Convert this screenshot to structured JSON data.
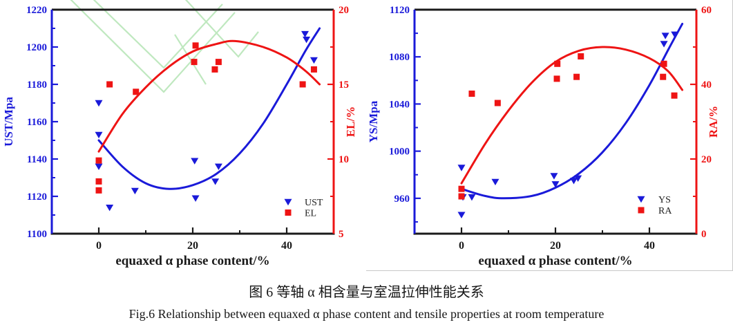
{
  "figure": {
    "caption_zh": "图 6 等轴 α 相含量与室温拉伸性能关系",
    "caption_en": "Fig.6 Relationship between equaxed α phase content and tensile properties at room temperature"
  },
  "colors": {
    "blue": "#1a1ad9",
    "red": "#ee1414",
    "black": "#1a1a1a",
    "watermark_green": "#bfe8bf",
    "panel_border": "#c8c8c8"
  },
  "chart_data": [
    {
      "type": "scatter",
      "xlabel": "equaxed α phase content/%",
      "x_range": [
        -10,
        50
      ],
      "x_ticks": [
        0,
        20,
        40
      ],
      "x_minor_ticks": [
        10,
        30
      ],
      "grid": false,
      "legend_position": "inside-bottom-right",
      "left_axis": {
        "label": "UST/Mpa",
        "color": "#1a1ad9",
        "range": [
          1100,
          1220
        ],
        "ticks": [
          1100,
          1120,
          1140,
          1160,
          1180,
          1200,
          1220
        ],
        "minor_ticks": [
          1110,
          1130,
          1150,
          1170,
          1190,
          1210
        ]
      },
      "right_axis": {
        "label": "EL/%",
        "color": "#ee1414",
        "range": [
          5,
          20
        ],
        "ticks": [
          5,
          10,
          15,
          20
        ],
        "minor_ticks": [
          7.5,
          12.5,
          17.5
        ]
      },
      "series": [
        {
          "name": "UST",
          "axis": "left",
          "marker": "triangle-down",
          "color": "#1a1ad9",
          "points": [
            [
              0,
              1170
            ],
            [
              0,
              1153
            ],
            [
              0,
              1136
            ],
            [
              2.3,
              1114
            ],
            [
              7.7,
              1123
            ],
            [
              20.4,
              1139
            ],
            [
              20.6,
              1119
            ],
            [
              25.5,
              1136
            ],
            [
              24.8,
              1128
            ],
            [
              43.9,
              1207
            ],
            [
              44.2,
              1204
            ],
            [
              45.8,
              1193
            ]
          ],
          "fit_curve": [
            [
              0,
              1150
            ],
            [
              5,
              1136
            ],
            [
              10,
              1127
            ],
            [
              15,
              1124
            ],
            [
              20,
              1126
            ],
            [
              25,
              1132
            ],
            [
              30,
              1143
            ],
            [
              35,
              1159
            ],
            [
              40,
              1180
            ],
            [
              44,
              1198
            ],
            [
              47,
              1210
            ]
          ]
        },
        {
          "name": "EL",
          "axis": "right",
          "marker": "square",
          "color": "#ee1414",
          "points": [
            [
              0,
              9.9
            ],
            [
              0,
              8.5
            ],
            [
              0,
              7.9
            ],
            [
              2.3,
              15
            ],
            [
              7.9,
              14.5
            ],
            [
              20.6,
              17.6
            ],
            [
              20.3,
              16.5
            ],
            [
              24.7,
              16
            ],
            [
              25.5,
              16.5
            ],
            [
              43.4,
              15
            ],
            [
              45.8,
              16
            ]
          ],
          "fit_curve": [
            [
              0,
              10.5
            ],
            [
              5,
              13
            ],
            [
              10,
              14.8
            ],
            [
              15,
              16.2
            ],
            [
              20,
              17.2
            ],
            [
              25,
              17.7
            ],
            [
              29,
              17.9
            ],
            [
              35,
              17.5
            ],
            [
              40,
              16.8
            ],
            [
              44,
              15.9
            ],
            [
              47,
              15
            ]
          ]
        }
      ],
      "legend": [
        "UST",
        "EL"
      ]
    },
    {
      "type": "scatter",
      "xlabel": "equaxed α phase content/%",
      "x_range": [
        -10,
        50
      ],
      "x_ticks": [
        0,
        20,
        40
      ],
      "x_minor_ticks": [
        10,
        30
      ],
      "grid": false,
      "legend_position": "inside-bottom-right",
      "left_axis": {
        "label": "YS/Mpa",
        "color": "#1a1ad9",
        "range": [
          930,
          1120
        ],
        "ticks": [
          960,
          1000,
          1040,
          1080,
          1120
        ],
        "minor_ticks": [
          940,
          980,
          1020,
          1060,
          1100
        ]
      },
      "right_axis": {
        "label": "RA/%",
        "color": "#ee1414",
        "range": [
          0,
          60
        ],
        "ticks": [
          0,
          20,
          40,
          60
        ],
        "minor_ticks": [
          10,
          30,
          50
        ]
      },
      "series": [
        {
          "name": "YS",
          "axis": "left",
          "marker": "triangle-down",
          "color": "#1a1ad9",
          "points": [
            [
              0,
              986
            ],
            [
              0.3,
              961
            ],
            [
              0,
              946
            ],
            [
              2.2,
              961
            ],
            [
              7.2,
              974
            ],
            [
              19.7,
              979
            ],
            [
              20,
              972
            ],
            [
              23.9,
              975
            ],
            [
              24.8,
              977
            ],
            [
              43.4,
              1098
            ],
            [
              43.1,
              1091
            ],
            [
              45.4,
              1099
            ]
          ],
          "fit_curve": [
            [
              0,
              968
            ],
            [
              5,
              962
            ],
            [
              9,
              960
            ],
            [
              15,
              962
            ],
            [
              20,
              969
            ],
            [
              25,
              981
            ],
            [
              30,
              999
            ],
            [
              35,
              1024
            ],
            [
              40,
              1056
            ],
            [
              44,
              1086
            ],
            [
              47,
              1108
            ]
          ]
        },
        {
          "name": "RA",
          "axis": "right",
          "marker": "square",
          "color": "#ee1414",
          "points": [
            [
              0,
              12
            ],
            [
              0,
              10
            ],
            [
              2.2,
              37.5
            ],
            [
              7.7,
              35
            ],
            [
              20.4,
              45.5
            ],
            [
              20.3,
              41.5
            ],
            [
              24.5,
              42
            ],
            [
              25.4,
              47.5
            ],
            [
              43.1,
              45.5
            ],
            [
              42.9,
              42
            ],
            [
              45.3,
              37
            ]
          ],
          "fit_curve": [
            [
              0,
              13.5
            ],
            [
              5,
              24
            ],
            [
              10,
              33
            ],
            [
              15,
              40.5
            ],
            [
              20,
              46
            ],
            [
              25,
              49
            ],
            [
              30,
              50
            ],
            [
              35,
              49.3
            ],
            [
              40,
              47
            ],
            [
              44,
              43.5
            ],
            [
              47,
              38.5
            ]
          ]
        }
      ],
      "legend": [
        "YS",
        "RA"
      ]
    }
  ]
}
